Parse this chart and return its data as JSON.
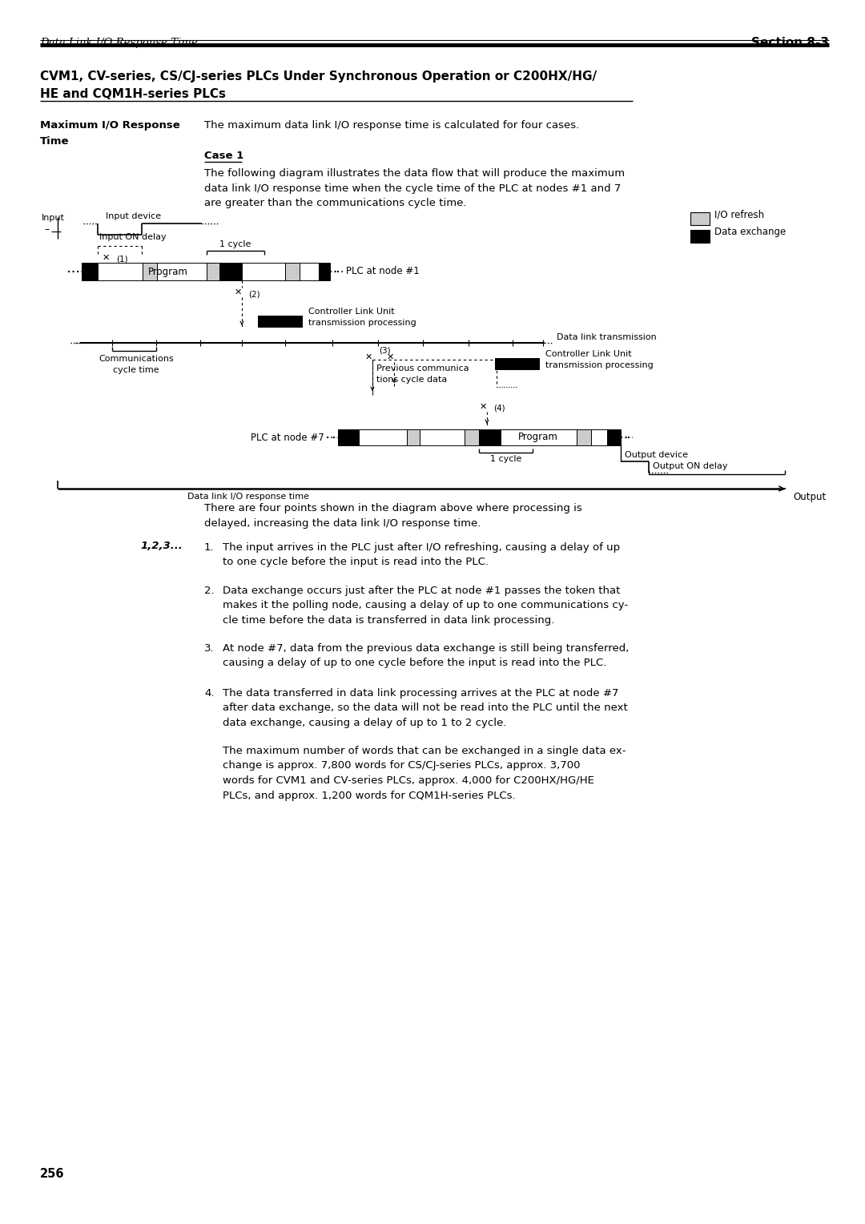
{
  "page_title_left": "Data Link I/O Response Time",
  "page_title_right": "Section 8-3",
  "bg_color": "#ffffff"
}
